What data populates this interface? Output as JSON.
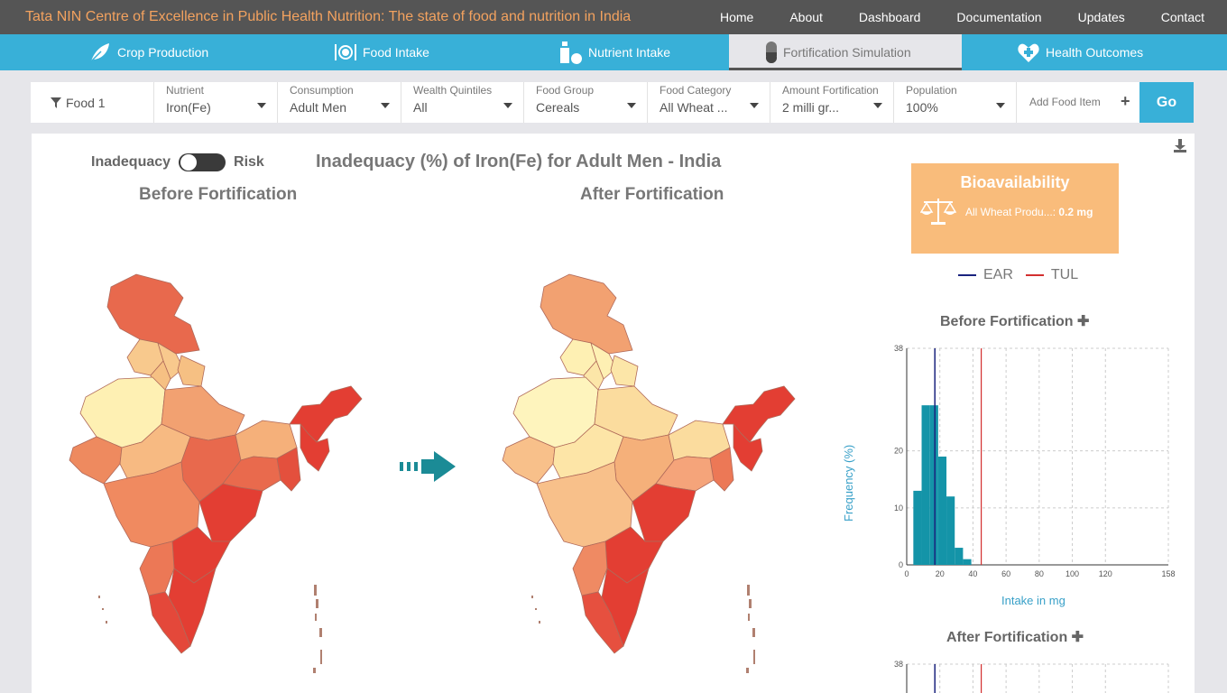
{
  "header": {
    "title": "Tata NIN Centre of Excellence in Public Health Nutrition: The state of food and nutrition in India",
    "nav": [
      "Home",
      "About",
      "Dashboard",
      "Documentation",
      "Updates",
      "Contact"
    ]
  },
  "tabs": [
    {
      "label": "Crop Production",
      "icon": "leaf-icon",
      "active": false
    },
    {
      "label": "Food Intake",
      "icon": "plate-cutlery-icon",
      "active": false
    },
    {
      "label": "Nutrient Intake",
      "icon": "bottle-apple-icon",
      "active": false
    },
    {
      "label": "Fortification Simulation",
      "icon": "capsule-icon",
      "active": true
    },
    {
      "label": "Health Outcomes",
      "icon": "heart-plus-icon",
      "active": false
    }
  ],
  "filters": {
    "food": "Food 1",
    "nutrient": {
      "label": "Nutrient",
      "value": "Iron(Fe)"
    },
    "consumption": {
      "label": "Consumption",
      "value": "Adult Men"
    },
    "wealth": {
      "label": "Wealth Quintiles",
      "value": "All"
    },
    "food_group": {
      "label": "Food Group",
      "value": "Cereals"
    },
    "food_category": {
      "label": "Food Category",
      "value": "All Wheat ..."
    },
    "amount": {
      "label": "Amount Fortification",
      "value": "2 milli gr..."
    },
    "population": {
      "label": "Population",
      "value": "100%"
    },
    "add_food": "Add Food Item",
    "go": "Go"
  },
  "panel": {
    "toggle_left": "Inadequacy",
    "toggle_right": "Risk",
    "title": "Inadequacy (%) of Iron(Fe) for Adult Men - India",
    "before_title": "Before Fortification",
    "after_title": "After Fortification"
  },
  "bioavailability": {
    "title": "Bioavailability",
    "item": "All Wheat Produ...:",
    "value": "0.2 mg"
  },
  "legend": {
    "ear": "EAR",
    "tul": "TUL",
    "ear_color": "#1a237e",
    "tul_color": "#d32f2f"
  },
  "histogram": {
    "before_title": "Before Fortification",
    "after_title": "After Fortification",
    "ylabel": "Frequency (%)",
    "xlabel": "Intake in mg",
    "x_ticks": [
      "0",
      "20",
      "40",
      "60",
      "80",
      "100",
      "120",
      "158"
    ],
    "y_ticks": [
      "0",
      "10",
      "20",
      "38"
    ]
  },
  "chart_data": {
    "type": "bar",
    "title": "Before Fortification",
    "xlabel": "Intake in mg",
    "ylabel": "Frequency (%)",
    "x_bins": [
      [
        4,
        9
      ],
      [
        9,
        14
      ],
      [
        14,
        19
      ],
      [
        19,
        24
      ],
      [
        24,
        29
      ],
      [
        29,
        34
      ],
      [
        34,
        39
      ]
    ],
    "values": [
      13,
      28,
      28,
      19,
      12,
      3,
      1
    ],
    "xlim": [
      0,
      158
    ],
    "ylim": [
      0,
      38
    ],
    "ear": 17,
    "tul": 45,
    "bar_color": "#1494a8",
    "grid": true
  }
}
